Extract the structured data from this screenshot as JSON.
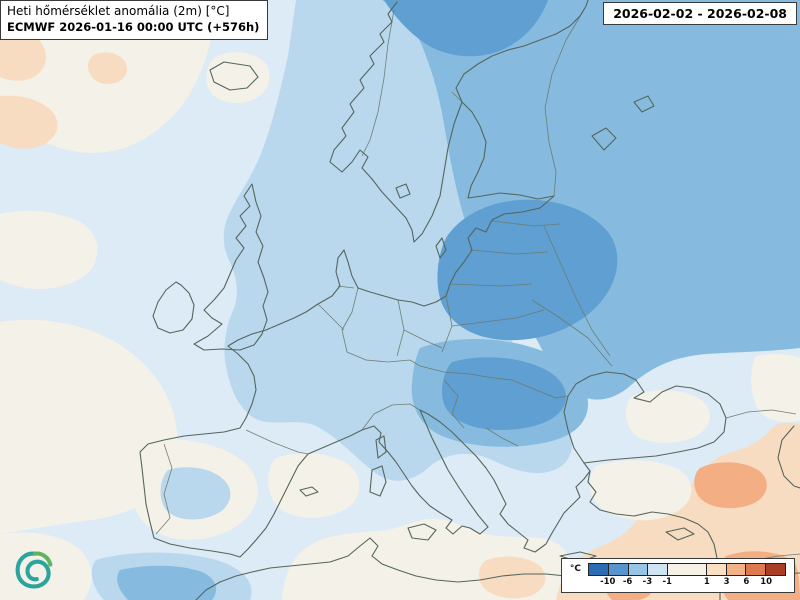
{
  "title_box": {
    "line1": "Heti hőmérséklet anomália (2m) [°C]",
    "line2": "ECMWF 2026-01-16 00:00 UTC (+576h)"
  },
  "date_range": "2026-02-02 - 2026-02-08",
  "legend": {
    "unit": "°C",
    "boundary_labels": [
      "-10",
      "-6",
      "-3",
      "-1",
      "1",
      "3",
      "6",
      "10"
    ],
    "cells": [
      {
        "color": "#2b6cb5",
        "span": 1
      },
      {
        "color": "#5596ce",
        "span": 1
      },
      {
        "color": "#96c5e6",
        "span": 1
      },
      {
        "color": "#cfe4f2",
        "span": 1
      },
      {
        "color": "#f5f1e6",
        "span": 2
      },
      {
        "color": "#fadfc3",
        "span": 1
      },
      {
        "color": "#f3b286",
        "span": 1
      },
      {
        "color": "#dd7a4f",
        "span": 1
      },
      {
        "color": "#a93f22",
        "span": 1
      }
    ]
  },
  "palette": {
    "base": "#dcebf6",
    "white_zone": "#f4f1e8",
    "cold1": "#b9d8ed",
    "cold2": "#86bbdf",
    "cold3": "#5f9fd1",
    "warm1": "#f8dcc1",
    "warm2": "#f3ae83",
    "coast": "#55655b",
    "border": "#6a7a6e",
    "logo_teal": "#2aa49c",
    "logo_green": "#62b35f"
  },
  "icons": {
    "logo": "cyclone-spiral"
  }
}
